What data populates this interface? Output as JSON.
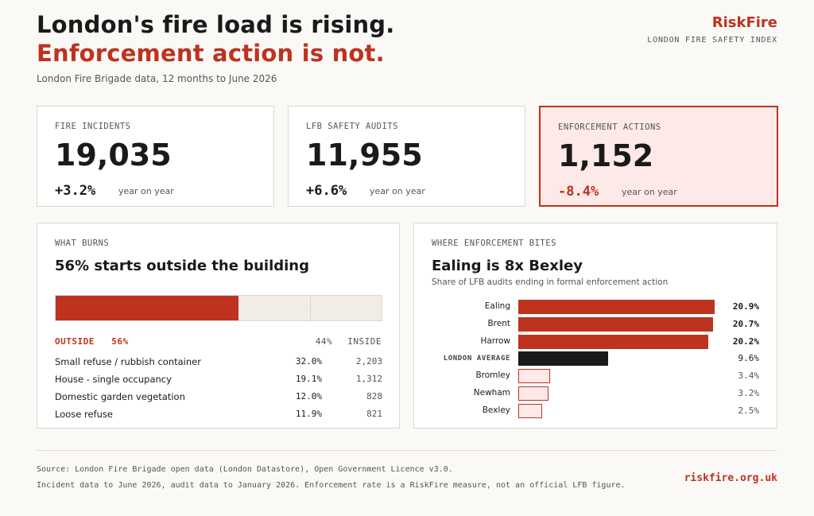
{
  "header": {
    "title_line1": "London's fire load is rising.",
    "title_line2": "Enforcement action is not.",
    "subtitle": "London Fire Brigade data, 12 months to June 2026",
    "brand": "RiskFire",
    "brand_sub": "LONDON FIRE SAFETY INDEX"
  },
  "kpis": [
    {
      "label": "FIRE INCIDENTS",
      "value": "19,035",
      "change": "+3.2%",
      "change_note": "year on year"
    },
    {
      "label": "LFB SAFETY AUDITS",
      "value": "11,955",
      "change": "+6.6%",
      "change_note": "year on year"
    },
    {
      "label": "ENFORCEMENT ACTIONS",
      "value": "1,152",
      "change": "-8.4%",
      "change_note": "year on year"
    }
  ],
  "what_burns": {
    "label": "WHAT BURNS",
    "title": "56% starts outside the building",
    "outside_label": "OUTSIDE",
    "outside_pct": "56%",
    "inside_label": "INSIDE",
    "inside_pct": "44%",
    "rows": [
      {
        "name": "Small refuse / rubbish container",
        "pct": "32.0%",
        "count": "2,203"
      },
      {
        "name": "House - single occupancy",
        "pct": "19.1%",
        "count": "1,312"
      },
      {
        "name": "Domestic garden vegetation",
        "pct": "12.0%",
        "count": "828"
      },
      {
        "name": "Loose refuse",
        "pct": "11.9%",
        "count": "821"
      }
    ]
  },
  "enforcement": {
    "label": "WHERE ENFORCEMENT BITES",
    "title": "Ealing is 8x Bexley",
    "description": "Share of LFB audits ending in formal enforcement action"
  },
  "chart_data": [
    {
      "type": "bar",
      "orientation": "horizontal-stacked",
      "title": "56% starts outside the building",
      "categories": [
        "OUTSIDE",
        "INSIDE"
      ],
      "values": [
        56,
        44
      ],
      "unit": "%"
    },
    {
      "type": "bar",
      "orientation": "horizontal",
      "title": "Ealing is 8x Bexley",
      "subtitle": "Share of LFB audits ending in formal enforcement action",
      "categories": [
        "Ealing",
        "Brent",
        "Harrow",
        "LONDON AVERAGE",
        "Bromley",
        "Newham",
        "Bexley"
      ],
      "values": [
        20.9,
        20.7,
        20.2,
        9.6,
        3.4,
        3.2,
        2.5
      ],
      "labels": [
        "20.9%",
        "20.7%",
        "20.2%",
        "9.6%",
        "3.4%",
        "3.2%",
        "2.5%"
      ],
      "groups": [
        "high",
        "high",
        "high",
        "avg",
        "low",
        "low",
        "low"
      ],
      "xlim": [
        0,
        20.9
      ],
      "unit": "%",
      "colors": {
        "high": "#bd3320",
        "avg": "#1a1a1a",
        "low": "#fde9e7"
      }
    }
  ],
  "footer": {
    "source_line1": "Source: London Fire Brigade open data (London Datastore), Open Government Licence v3.0.",
    "source_line2": "Incident data to June 2026, audit data to January 2026. Enforcement rate is a RiskFire measure, not an official LFB figure.",
    "url": "riskfire.org.uk"
  },
  "colors": {
    "accent": "#bd3320",
    "alert_bg": "#fde9e7",
    "page_bg": "#faf9f6"
  }
}
